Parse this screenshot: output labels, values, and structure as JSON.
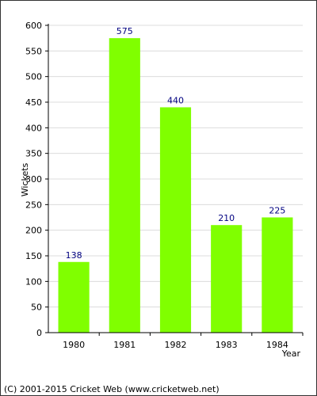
{
  "chart_data": {
    "type": "bar",
    "categories": [
      "1980",
      "1981",
      "1982",
      "1983",
      "1984"
    ],
    "values": [
      138,
      575,
      440,
      210,
      225
    ],
    "data_labels": [
      "138",
      "575",
      "440",
      "210",
      "225"
    ],
    "xlabel": "Year",
    "ylabel": "Wickets",
    "ylim": [
      0,
      600
    ],
    "yticks": [
      0,
      50,
      100,
      150,
      200,
      250,
      300,
      350,
      400,
      450,
      500,
      550,
      600
    ],
    "grid": "horizontal",
    "bar_color": "#80ff00",
    "label_color": "#000080",
    "grid_color": "#dcdcdc"
  },
  "footer": {
    "copyright": "(C) 2001-2015 Cricket Web (www.cricketweb.net)"
  }
}
